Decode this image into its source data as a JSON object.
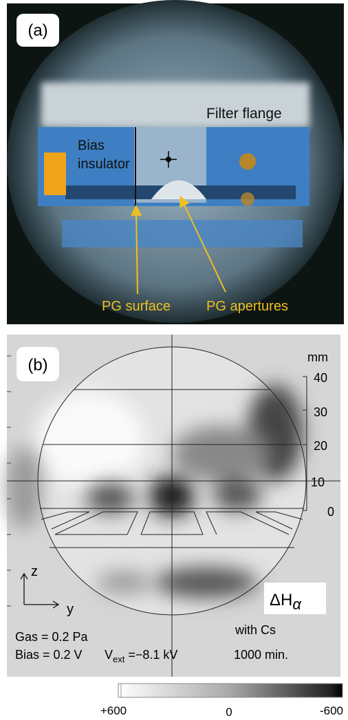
{
  "panel_a": {
    "label": "(a)",
    "annotations": {
      "filter_flange": "Filter flange",
      "bias_insulator": [
        "Bias",
        "insulator"
      ],
      "pg_surface": "PG surface",
      "pg_apertures": "PG apertures"
    }
  },
  "panel_b": {
    "label": "(b)",
    "scale_unit": "mm",
    "scale_labels": [
      "40",
      "30",
      "20",
      "10",
      "0"
    ],
    "axes": [
      "z",
      "y"
    ],
    "quantity": {
      "main": "ΔH",
      "sub": "α"
    },
    "conditions": {
      "gas": "Gas = 0.2 Pa",
      "bias": "Bias = 0.2 V",
      "vext": [
        "V",
        "ext",
        " =−8.1 kV"
      ],
      "cs": "with Cs",
      "time": "1000 min."
    }
  },
  "colorbar": {
    "labels": [
      "+600",
      "0",
      "-600"
    ]
  }
}
